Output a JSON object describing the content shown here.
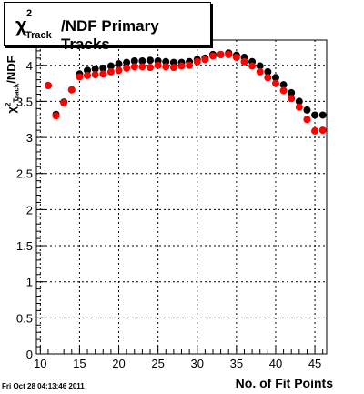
{
  "chart_data": {
    "type": "scatter",
    "title": "/NDF Primary Tracks",
    "title_chi": "χ",
    "title_sup": "2",
    "title_sub": "Track",
    "xlabel": "No. of Fit Points",
    "ylabel": "/NDF",
    "ylabel_chi": "χ",
    "ylabel_sup": "2",
    "ylabel_sub": "Track",
    "footer": "Fri Oct 28 04:13:46 2011",
    "xlim": [
      9.5,
      46.5
    ],
    "ylim": [
      0,
      4.35
    ],
    "grid": true,
    "x_ticks": [
      10,
      15,
      20,
      25,
      30,
      35,
      40,
      45
    ],
    "y_ticks": [
      "0",
      "0.5",
      "1",
      "1.5",
      "2",
      "2.5",
      "3",
      "3.5",
      "4"
    ],
    "series": [
      {
        "color": "#000000",
        "x": [
          11,
          12,
          13,
          14,
          15,
          16,
          17,
          18,
          19,
          20,
          21,
          22,
          23,
          24,
          25,
          26,
          27,
          28,
          29,
          30,
          31,
          32,
          33,
          34,
          35,
          36,
          37,
          38,
          39,
          40,
          41,
          42,
          43,
          44,
          45,
          46
        ],
        "y": [
          3.72,
          3.32,
          3.49,
          3.66,
          3.88,
          3.93,
          3.95,
          3.96,
          3.99,
          4.02,
          4.04,
          4.06,
          4.06,
          4.07,
          4.06,
          4.05,
          4.04,
          4.04,
          4.05,
          4.08,
          4.1,
          4.15,
          4.15,
          4.17,
          4.14,
          4.11,
          4.05,
          3.99,
          3.91,
          3.83,
          3.73,
          3.62,
          3.5,
          3.38,
          3.31,
          3.31
        ]
      },
      {
        "color": "#ff0000",
        "x": [
          11,
          12,
          13,
          14,
          15,
          16,
          17,
          18,
          19,
          20,
          21,
          22,
          23,
          24,
          25,
          26,
          27,
          28,
          29,
          30,
          31,
          32,
          33,
          34,
          35,
          36,
          37,
          38,
          39,
          40,
          41,
          42,
          43,
          44,
          45,
          46
        ],
        "y": [
          3.72,
          3.3,
          3.48,
          3.66,
          3.84,
          3.86,
          3.87,
          3.88,
          3.91,
          3.93,
          3.96,
          3.98,
          3.98,
          3.97,
          4.0,
          3.98,
          3.97,
          3.99,
          4.0,
          4.05,
          4.08,
          4.13,
          4.15,
          4.15,
          4.11,
          4.05,
          3.99,
          3.91,
          3.83,
          3.75,
          3.65,
          3.54,
          3.42,
          3.25,
          3.09,
          3.1
        ]
      }
    ]
  }
}
